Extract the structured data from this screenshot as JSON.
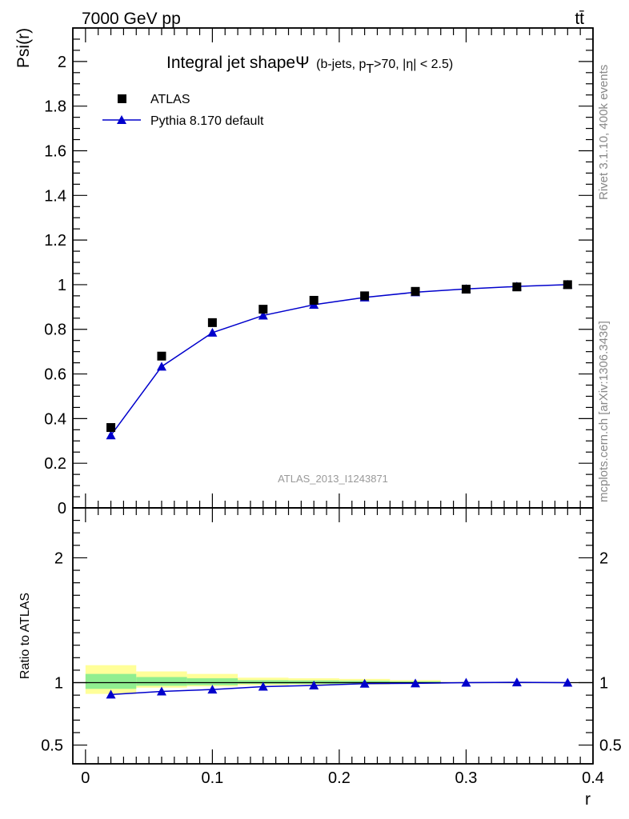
{
  "header": {
    "left": "7000 GeV pp",
    "right": "tt̄"
  },
  "title": {
    "main": "Integral jet shapeΨ",
    "detail_open": "(b-jets, p",
    "detail_sub": "T",
    "detail_close": ">70, |η| < 2.5)"
  },
  "side_labels": {
    "rivet": "Rivet 3.1.10,  400k events",
    "mcplots": "mcplots.cern.ch [arXiv:1306.3436]"
  },
  "watermark": "ATLAS_2013_I1243871",
  "colors": {
    "data": "#000000",
    "mc": "#0000cc",
    "band_inner": "#90ee90",
    "band_outer": "#ffff99"
  },
  "chart_data": [
    {
      "type": "scatter",
      "ylabel": "Psi(r)",
      "xlim": [
        -0.01,
        0.4
      ],
      "ylim": [
        0,
        2.15
      ],
      "y_ticks": [
        0,
        0.2,
        0.4,
        0.6,
        0.8,
        1,
        1.2,
        1.4,
        1.6,
        1.8,
        2
      ],
      "y_tick_labels": [
        "0",
        "0.2",
        "0.4",
        "0.6",
        "0.8",
        "1",
        "1.2",
        "1.4",
        "1.6",
        "1.8",
        "2"
      ],
      "legend_position": "top-left",
      "series": [
        {
          "name": "ATLAS",
          "marker": "square",
          "x": [
            0.02,
            0.06,
            0.1,
            0.14,
            0.18,
            0.22,
            0.26,
            0.3,
            0.34,
            0.38
          ],
          "y": [
            0.36,
            0.68,
            0.83,
            0.89,
            0.93,
            0.95,
            0.97,
            0.98,
            0.99,
            1.0
          ]
        },
        {
          "name": "Pythia 8.170 default",
          "marker": "triangle",
          "x": [
            0.02,
            0.06,
            0.1,
            0.14,
            0.18,
            0.22,
            0.26,
            0.3,
            0.34,
            0.38
          ],
          "y": [
            0.325,
            0.633,
            0.785,
            0.862,
            0.91,
            0.943,
            0.966,
            0.981,
            0.992,
            1.0
          ]
        }
      ]
    },
    {
      "type": "line",
      "xlabel": "r",
      "ylabel": "Ratio to ATLAS",
      "xlim": [
        -0.01,
        0.4
      ],
      "ylim": [
        0.35,
        2.4
      ],
      "y_ticks": [
        0.5,
        1,
        2
      ],
      "y_tick_labels": [
        "0.5",
        "1",
        "2"
      ],
      "x_ticks": [
        0,
        0.1,
        0.2,
        0.3,
        0.4
      ],
      "x_tick_labels": [
        "0",
        "0.1",
        "0.2",
        "0.3",
        "0.4"
      ],
      "bands": [
        {
          "x0": 0.0,
          "x1": 0.04,
          "outer": [
            0.91,
            1.14
          ],
          "inner": [
            0.95,
            1.07
          ]
        },
        {
          "x0": 0.04,
          "x1": 0.08,
          "outer": [
            0.96,
            1.09
          ],
          "inner": [
            0.975,
            1.045
          ]
        },
        {
          "x0": 0.08,
          "x1": 0.12,
          "outer": [
            0.97,
            1.07
          ],
          "inner": [
            0.98,
            1.035
          ]
        },
        {
          "x0": 0.12,
          "x1": 0.16,
          "outer": [
            0.98,
            1.04
          ],
          "inner": [
            0.99,
            1.02
          ]
        },
        {
          "x0": 0.16,
          "x1": 0.2,
          "outer": [
            0.985,
            1.035
          ],
          "inner": [
            0.99,
            1.018
          ]
        },
        {
          "x0": 0.2,
          "x1": 0.24,
          "outer": [
            0.985,
            1.03
          ],
          "inner": [
            0.99,
            1.015
          ]
        },
        {
          "x0": 0.24,
          "x1": 0.28,
          "outer": [
            0.99,
            1.02
          ],
          "inner": [
            0.993,
            1.01
          ]
        },
        {
          "x0": 0.28,
          "x1": 0.32,
          "outer": [
            0.997,
            1.004
          ],
          "inner": [
            0.998,
            1.002
          ]
        },
        {
          "x0": 0.32,
          "x1": 0.36,
          "outer": [
            0.998,
            1.003
          ],
          "inner": [
            0.999,
            1.001
          ]
        },
        {
          "x0": 0.36,
          "x1": 0.4,
          "outer": [
            0.999,
            1.001
          ],
          "inner": [
            0.9995,
            1.0005
          ]
        }
      ],
      "series": [
        {
          "name": "Pythia 8.170 default",
          "marker": "triangle",
          "x": [
            0.02,
            0.06,
            0.1,
            0.14,
            0.18,
            0.22,
            0.26,
            0.3,
            0.34,
            0.38
          ],
          "y": [
            0.905,
            0.93,
            0.945,
            0.968,
            0.978,
            0.992,
            0.995,
            1.0,
            1.003,
            1.0
          ]
        }
      ]
    }
  ]
}
